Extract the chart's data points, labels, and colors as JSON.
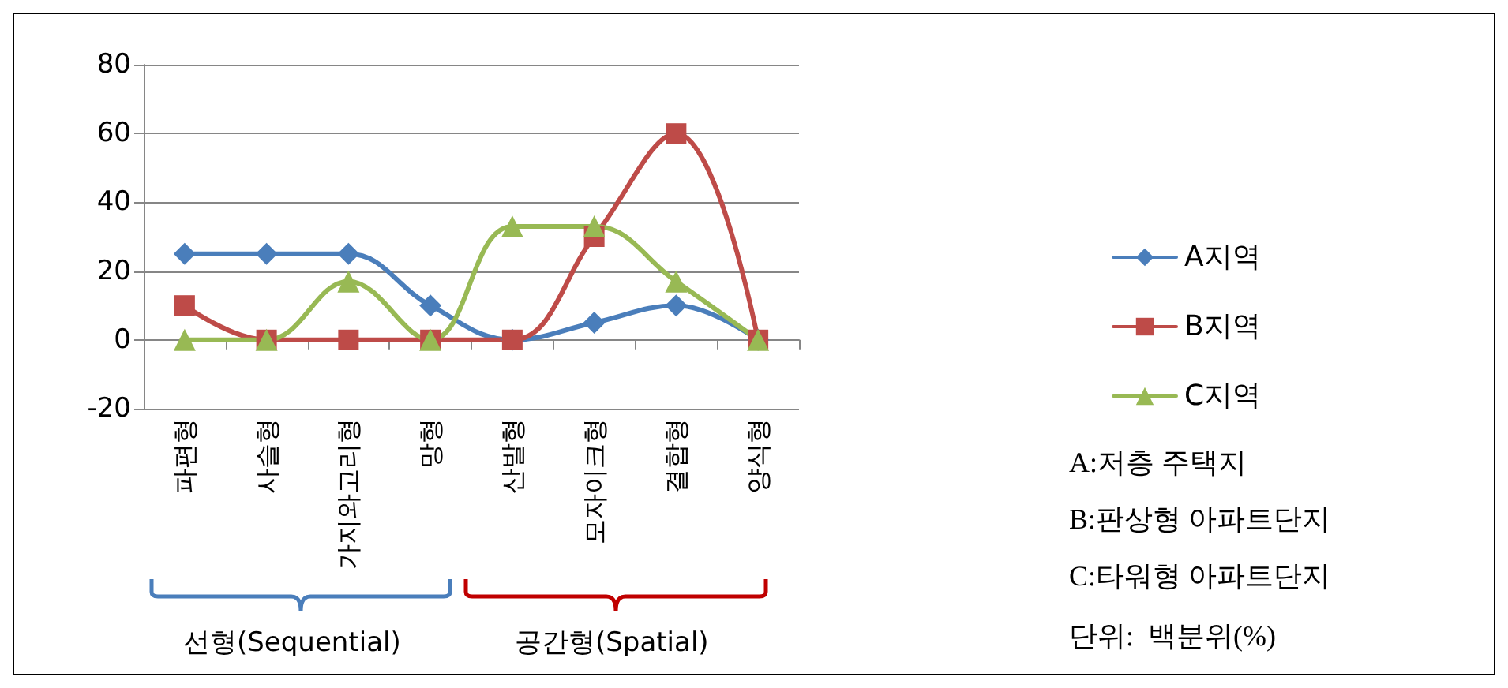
{
  "chart_data": {
    "type": "line",
    "categories": [
      "파편형",
      "사슬형",
      "가지와고리형",
      "망형",
      "산발형",
      "모자이크형",
      "결합형",
      "양식형"
    ],
    "series": [
      {
        "name": "A지역",
        "color": "#4a7ebb",
        "marker": "diamond",
        "values": [
          25,
          25,
          25,
          10,
          0,
          5,
          10,
          0
        ]
      },
      {
        "name": "B지역",
        "color": "#be4b48",
        "marker": "square",
        "values": [
          10,
          0,
          0,
          0,
          0,
          30,
          60,
          0
        ]
      },
      {
        "name": "C지역",
        "color": "#98b954",
        "marker": "triangle",
        "values": [
          0,
          0,
          17,
          0,
          33,
          33,
          17,
          0
        ]
      }
    ],
    "ylim": [
      -20,
      80
    ],
    "yticks": [
      -20,
      0,
      20,
      40,
      60,
      80
    ],
    "grid": "y",
    "legend": "right",
    "annotations": [
      "선형(Sequential)",
      "공간형(Spatial)",
      "A:저층 주택지",
      "B:판상형 아파트단지",
      "C:타워형 아파트단지",
      "단위:  백분위(%)"
    ]
  }
}
